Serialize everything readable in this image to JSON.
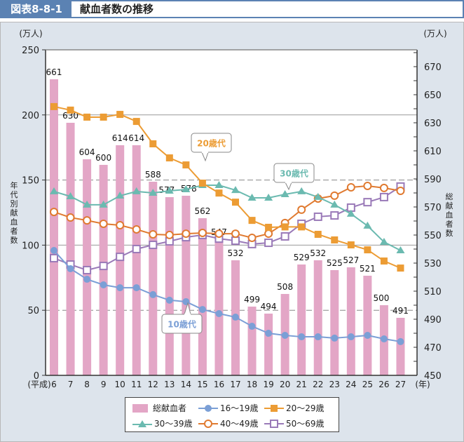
{
  "header": {
    "figure_no": "図表8-8-1",
    "title": "献血者数の推移"
  },
  "chart_data": {
    "type": "bar+line",
    "categories": [
      "6",
      "7",
      "8",
      "9",
      "10",
      "11",
      "12",
      "13",
      "14",
      "15",
      "16",
      "17",
      "18",
      "19",
      "20",
      "21",
      "22",
      "23",
      "24",
      "25",
      "26",
      "27"
    ],
    "x_prefix": "(平成)",
    "x_suffix": "(年)",
    "left_axis": {
      "label": "年代別献血者数",
      "unit": "(万人)",
      "range": [
        0,
        250
      ],
      "ticks": [
        "0",
        "50",
        "100",
        "150",
        "200",
        "250"
      ]
    },
    "right_axis": {
      "label": "総献血者数",
      "unit": "(万人)",
      "range": [
        450,
        682
      ],
      "ticks": [
        "450",
        "470",
        "490",
        "510",
        "530",
        "550",
        "570",
        "590",
        "610",
        "630",
        "650",
        "670"
      ]
    },
    "grid": "horizontal at 50, 100, 150, 200 (left axis)",
    "bars": {
      "name": "総献血者",
      "axis": "right",
      "color": "#e3a6c6",
      "values": [
        661,
        630,
        604,
        600,
        614,
        614,
        588,
        577,
        578,
        562,
        547,
        532,
        499,
        494,
        508,
        529,
        532,
        525,
        527,
        521,
        500,
        491
      ],
      "labels": [
        "661",
        "630",
        "604",
        "600",
        "614",
        "614",
        "588",
        "577",
        "578",
        "562",
        "547",
        "532",
        "499",
        "494",
        "508",
        "529",
        "532",
        "525",
        "527",
        "521",
        "500",
        "491"
      ]
    },
    "series": [
      {
        "name": "16～19歳",
        "color": "#7b9fd6",
        "marker": "circle-filled",
        "values": [
          95.9,
          81.9,
          73.8,
          69.5,
          67.3,
          67.3,
          62.0,
          57.7,
          56.6,
          50.6,
          47.4,
          44.7,
          37.7,
          32.3,
          30.7,
          29.6,
          29.6,
          28.6,
          29.6,
          30.7,
          28.0,
          25.9
        ]
      },
      {
        "name": "20～29歳",
        "color": "#ec9c34",
        "marker": "square-filled",
        "values": [
          206.4,
          203.7,
          198.3,
          198.3,
          200.4,
          195.0,
          177.8,
          167.0,
          161.6,
          147.6,
          140.0,
          133.0,
          119.0,
          113.7,
          114.0,
          114.0,
          108.3,
          104.0,
          100.2,
          96.4,
          87.8,
          82.4
        ]
      },
      {
        "name": "30～39歳",
        "color": "#6bbab0",
        "marker": "triangle-filled",
        "values": [
          141.2,
          137.4,
          131.0,
          131.0,
          137.9,
          141.2,
          140.1,
          141.7,
          142.8,
          146.0,
          146.0,
          142.2,
          136.3,
          136.3,
          139.0,
          141.2,
          136.9,
          131.0,
          124.0,
          114.8,
          102.4,
          95.9
        ]
      },
      {
        "name": "40～49歳",
        "color": "#e07a30",
        "marker": "circle-open",
        "values": [
          125.5,
          121.2,
          119.0,
          116.4,
          115.3,
          112.1,
          108.3,
          107.8,
          108.8,
          109.4,
          108.8,
          108.8,
          105.6,
          108.8,
          117.0,
          127.2,
          135.8,
          138.0,
          144.4,
          145.5,
          143.9,
          141.7
        ]
      },
      {
        "name": "50～69歳",
        "color": "#9a7ab8",
        "marker": "square-open",
        "values": [
          90.0,
          85.1,
          80.8,
          84.0,
          91.0,
          97.0,
          100.2,
          102.9,
          106.1,
          107.8,
          105.0,
          103.4,
          100.8,
          101.8,
          106.7,
          116.4,
          121.8,
          122.8,
          128.8,
          133.0,
          136.9,
          145.0
        ]
      }
    ],
    "annotations": [
      {
        "text": "20歳代",
        "series": "20～29歳",
        "color": "#ec9c34"
      },
      {
        "text": "30歳代",
        "series": "30～39歳",
        "color": "#6bbab0"
      },
      {
        "text": "10歳代",
        "series": "16～19歳",
        "color": "#7b9fd6"
      }
    ],
    "legend": [
      "総献血者",
      "16～19歳",
      "20～29歳",
      "30～39歳",
      "40～49歳",
      "50～69歳"
    ],
    "legend_placement": "bottom-center"
  }
}
